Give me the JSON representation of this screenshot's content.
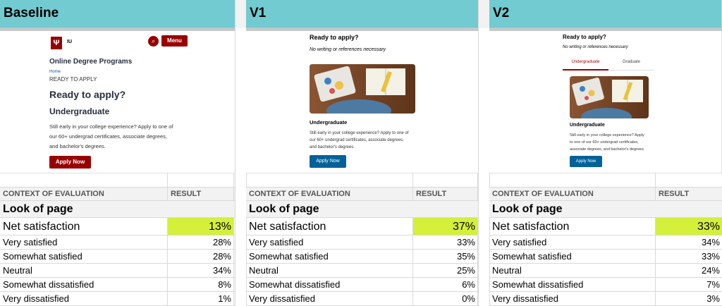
{
  "columns": [
    {
      "header": "Baseline",
      "preview": {
        "brand": "IU",
        "menu": "Menu",
        "site_title": "Online Degree Programs",
        "breadcrumb_home": "Home",
        "breadcrumb_current": "READY TO APPLY",
        "heading": "Ready to apply?",
        "subheading": "Undergraduate",
        "body_lines": [
          "Still early in your college experience? Apply to one of",
          "our 60+ undergrad certificates, associate degrees,",
          "and bachelor's degrees."
        ],
        "cta": "Apply Now"
      },
      "table": {
        "col_context": "CONTEXT OF EVALUATION",
        "col_result": "RESULT",
        "section": "Look of page",
        "net_label": "Net satisfaction",
        "net_value": "13%",
        "rows": [
          {
            "label": "Very satisfied",
            "value": "28%"
          },
          {
            "label": "Somewhat satisfied",
            "value": "28%"
          },
          {
            "label": "Neutral",
            "value": "34%"
          },
          {
            "label": "Somewhat dissatisfied",
            "value": "8%"
          },
          {
            "label": "Very dissatisfied",
            "value": "1%"
          }
        ]
      }
    },
    {
      "header": "V1",
      "preview": {
        "heading": "Ready to apply?",
        "tagline": "No writing or references necessary",
        "subheading": "Undergraduate",
        "body_lines": [
          "Still early in your college experience? Apply to one of",
          "our 60+ undergrad certificates, associate degrees,",
          "and bachelor's degrees."
        ],
        "cta": "Apply Now"
      },
      "table": {
        "col_context": "CONTEXT OF EVALUATION",
        "col_result": "RESULT",
        "section": "Look of page",
        "net_label": "Net satisfaction",
        "net_value": "37%",
        "rows": [
          {
            "label": "Very satisfied",
            "value": "33%"
          },
          {
            "label": "Somewhat satisfied",
            "value": "35%"
          },
          {
            "label": "Neutral",
            "value": "25%"
          },
          {
            "label": "Somewhat dissatisfied",
            "value": "6%"
          },
          {
            "label": "Very dissatisfied",
            "value": "0%"
          }
        ]
      }
    },
    {
      "header": "V2",
      "preview": {
        "heading": "Ready to apply?",
        "tagline": "No writing or references necessary",
        "tab_active": "Undergraduate",
        "tab_inactive": "Graduate",
        "subheading": "Undergraduate",
        "body_lines": [
          "Still early in your college experience? Apply",
          "to one of our 60+ undergrad certificates,",
          "associate degrees, and bachelor's degrees."
        ],
        "cta": "Apply Now"
      },
      "table": {
        "col_context": "CONTEXT OF EVALUATION",
        "col_result": "RESULT",
        "section": "Look of page",
        "net_label": "Net satisfaction",
        "net_value": "33%",
        "rows": [
          {
            "label": "Very satisfied",
            "value": "34%"
          },
          {
            "label": "Somewhat satisfied",
            "value": "33%"
          },
          {
            "label": "Neutral",
            "value": "24%"
          },
          {
            "label": "Somewhat dissatisfied",
            "value": "7%"
          },
          {
            "label": "Very dissatisfied",
            "value": "3%"
          }
        ]
      }
    }
  ],
  "colors": {
    "header_bg": "#72cbd0",
    "highlight": "#d4f03b",
    "iu_crimson": "#990000",
    "cta_blue": "#006298"
  },
  "icons": {
    "logo": "iu-trident-logo",
    "search": "search-icon"
  }
}
